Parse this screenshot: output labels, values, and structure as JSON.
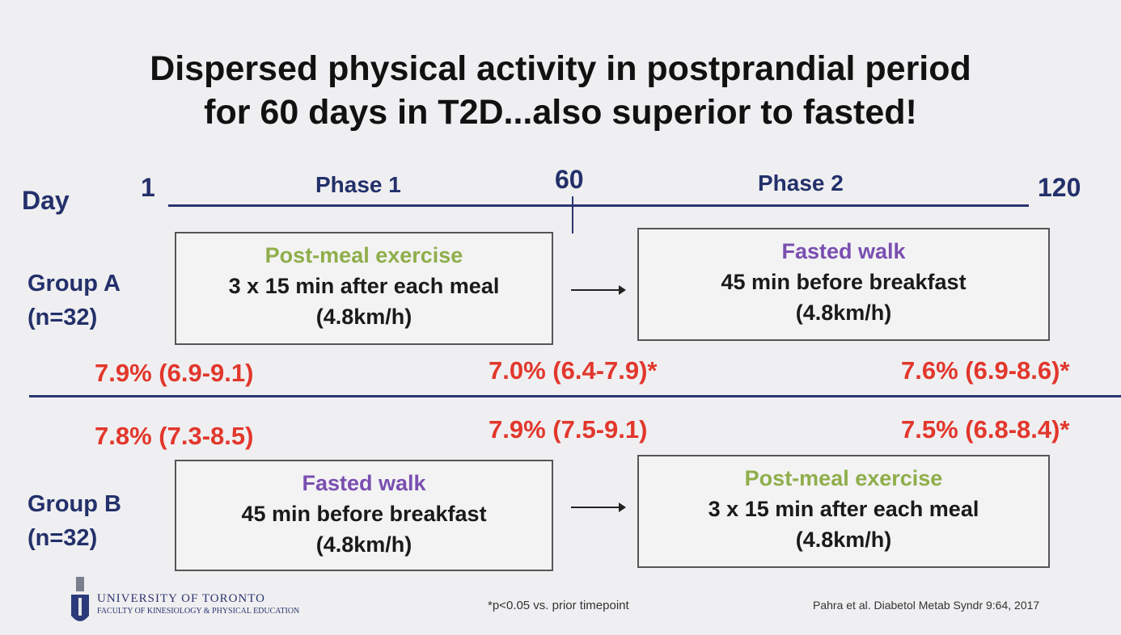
{
  "title": [
    "Dispersed physical activity in postprandial period",
    "for 60 days in T2D...also superior to fasted!"
  ],
  "timeline": {
    "day_label": "Day",
    "start": "1",
    "mid": "60",
    "end": "120",
    "phase1": "Phase 1",
    "phase2": "Phase 2"
  },
  "group_a": {
    "label": "Group A",
    "n": "(n=32)",
    "phase1": {
      "title": "Post-meal exercise",
      "line1": "3 x 15 min after each meal",
      "line2": "(4.8km/h)"
    },
    "phase2": {
      "title": "Fasted walk",
      "line1": "45 min before breakfast",
      "line2": "(4.8km/h)"
    },
    "values": [
      "7.9% (6.9-9.1)",
      "7.0% (6.4-7.9)*",
      "7.6% (6.9-8.6)*"
    ]
  },
  "group_b": {
    "label": "Group B",
    "n": "(n=32)",
    "phase1": {
      "title": "Fasted walk",
      "line1": "45 min before breakfast",
      "line2": "(4.8km/h)"
    },
    "phase2": {
      "title": "Post-meal exercise",
      "line1": "3 x 15 min after each meal",
      "line2": "(4.8km/h)"
    },
    "values": [
      "7.8% (7.3-8.5)",
      "7.9% (7.5-9.1)",
      "7.5% (6.8-8.4)*"
    ]
  },
  "footer": {
    "logo_line1": "UNIVERSITY OF TORONTO",
    "logo_line2": "FACULTY OF KINESIOLOGY & PHYSICAL EDUCATION",
    "note": "*p<0.05 vs. prior timepoint",
    "citation": "Pahra et al. Diabetol Metab Syndr 9:64, 2017"
  },
  "colors": {
    "navy": "#23306a",
    "red": "#e2372c",
    "green": "#8fae4a",
    "purple": "#7a4fb0"
  }
}
